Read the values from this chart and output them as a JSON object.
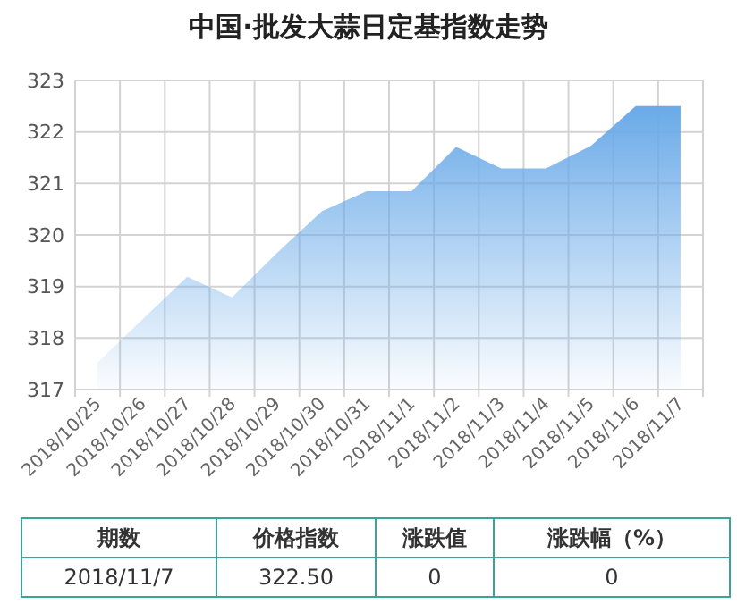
{
  "chart_data": {
    "type": "area",
    "title": "中国·批发大蒜日定基指数走势",
    "categories": [
      "2018/10/25",
      "2018/10/26",
      "2018/10/27",
      "2018/10/28",
      "2018/10/29",
      "2018/10/30",
      "2018/10/31",
      "2018/11/1",
      "2018/11/2",
      "2018/11/3",
      "2018/11/4",
      "2018/11/5",
      "2018/11/6",
      "2018/11/7"
    ],
    "series": [
      {
        "color": "#6aaae8",
        "values": [
          317.52,
          318.36,
          319.19,
          318.79,
          319.65,
          320.46,
          320.85,
          320.85,
          321.71,
          321.29,
          321.29,
          321.73,
          322.5,
          322.5
        ]
      }
    ],
    "ylim": [
      317,
      323
    ],
    "yticks": [
      317,
      318,
      319,
      320,
      321,
      322,
      323
    ],
    "grid": true,
    "annotations": [
      "期数",
      "价格指数",
      "涨跌值",
      "涨跌幅（%）",
      "2018/11/7",
      "322.50",
      "0",
      "0"
    ]
  }
}
